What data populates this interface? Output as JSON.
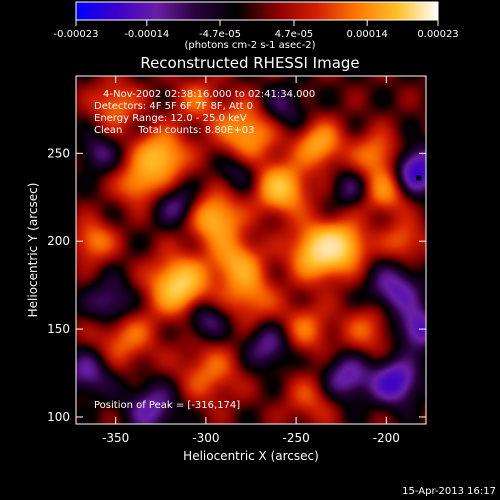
{
  "chart_data": {
    "type": "heatmap",
    "title": "Reconstructed RHESSI Image",
    "xlabel": "Heliocentric X (arcsec)",
    "ylabel": "Heliocentric Y (arcsec)",
    "xlim": [
      -372,
      -178
    ],
    "ylim": [
      96,
      294
    ],
    "x_ticks": [
      -350,
      -300,
      -250,
      -200
    ],
    "y_ticks": [
      100,
      150,
      200,
      250
    ],
    "grid": false,
    "colorbar": {
      "range": [
        -0.00023,
        0.00023
      ],
      "tick_values": [
        -0.00023,
        -0.00014,
        -4.7e-05,
        4.7e-05,
        0.00014,
        0.00023
      ],
      "tick_labels": [
        "-0.00023",
        "-0.00014",
        "-4.7e-05",
        "4.7e-05",
        "0.00014",
        "0.00023"
      ],
      "unit_label": "(photons cm-2 s-1 asec-2)",
      "colors": [
        "#0000ff",
        "#3a00c8",
        "#6a1fa6",
        "#28003a",
        "#000000",
        "#8a0000",
        "#d42000",
        "#ff7a00",
        "#ffc02a",
        "#ffffff"
      ]
    },
    "info_lines": [
      "4-Nov-2002 02:38:16.000 to 02:41:34.000",
      "Detectors: 4F 5F 6F 7F 8F, Att 0",
      "Energy Range: 12.0 - 25.0 keV",
      "Clean     Total counts: 8.80E+03"
    ],
    "peak_label": "Position of Peak = [-316,174]",
    "peak": [
      -316,
      174
    ],
    "marker": [
      -182,
      236
    ],
    "blobs": [
      {
        "x": -315,
        "y": 175,
        "v": 1.0,
        "s": 11
      },
      {
        "x": -325,
        "y": 248,
        "v": 0.85,
        "s": 10
      },
      {
        "x": -277,
        "y": 262,
        "v": 0.7,
        "s": 12
      },
      {
        "x": -258,
        "y": 230,
        "v": 0.85,
        "s": 10
      },
      {
        "x": -237,
        "y": 194,
        "v": 1.0,
        "s": 11
      },
      {
        "x": -222,
        "y": 198,
        "v": 0.6,
        "s": 9
      },
      {
        "x": -295,
        "y": 213,
        "v": 0.8,
        "s": 10
      },
      {
        "x": -283,
        "y": 188,
        "v": 0.65,
        "s": 10
      },
      {
        "x": -237,
        "y": 255,
        "v": 0.7,
        "s": 9
      },
      {
        "x": -205,
        "y": 249,
        "v": 0.55,
        "s": 9
      },
      {
        "x": -200,
        "y": 228,
        "v": 0.55,
        "s": 9
      },
      {
        "x": -275,
        "y": 168,
        "v": 0.5,
        "s": 10
      },
      {
        "x": -345,
        "y": 146,
        "v": 0.5,
        "s": 12
      },
      {
        "x": -362,
        "y": 200,
        "v": 0.55,
        "s": 8
      },
      {
        "x": -298,
        "y": 125,
        "v": 0.45,
        "s": 12
      },
      {
        "x": -245,
        "y": 150,
        "v": 0.45,
        "s": 10
      },
      {
        "x": -210,
        "y": 150,
        "v": 0.4,
        "s": 10
      },
      {
        "x": -242,
        "y": 110,
        "v": 0.35,
        "s": 10
      },
      {
        "x": -338,
        "y": 232,
        "v": 0.55,
        "s": 8
      },
      {
        "x": -350,
        "y": 278,
        "v": 0.5,
        "s": 9
      },
      {
        "x": -305,
        "y": 280,
        "v": 0.4,
        "s": 9
      },
      {
        "x": -190,
        "y": 200,
        "v": 0.45,
        "s": 8
      },
      {
        "x": -352,
        "y": 164,
        "v": -0.55,
        "s": 9
      },
      {
        "x": -315,
        "y": 220,
        "v": -0.45,
        "s": 8
      },
      {
        "x": -183,
        "y": 240,
        "v": -0.9,
        "s": 9
      },
      {
        "x": -195,
        "y": 172,
        "v": -0.6,
        "s": 10
      },
      {
        "x": -222,
        "y": 122,
        "v": -0.6,
        "s": 9
      },
      {
        "x": -195,
        "y": 120,
        "v": -0.8,
        "s": 9
      },
      {
        "x": -182,
        "y": 150,
        "v": -0.7,
        "s": 8
      },
      {
        "x": -330,
        "y": 105,
        "v": -0.55,
        "s": 10
      },
      {
        "x": -265,
        "y": 140,
        "v": -0.5,
        "s": 9
      },
      {
        "x": -258,
        "y": 275,
        "v": -0.4,
        "s": 9
      },
      {
        "x": -282,
        "y": 240,
        "v": -0.35,
        "s": 8
      },
      {
        "x": -360,
        "y": 250,
        "v": -0.4,
        "s": 7
      },
      {
        "x": -300,
        "y": 155,
        "v": -0.45,
        "s": 8
      },
      {
        "x": -220,
        "y": 230,
        "v": -0.35,
        "s": 7
      },
      {
        "x": -365,
        "y": 125,
        "v": -0.5,
        "s": 9
      }
    ]
  },
  "footer": {
    "timestamp": "15-Apr-2013 16:17"
  }
}
